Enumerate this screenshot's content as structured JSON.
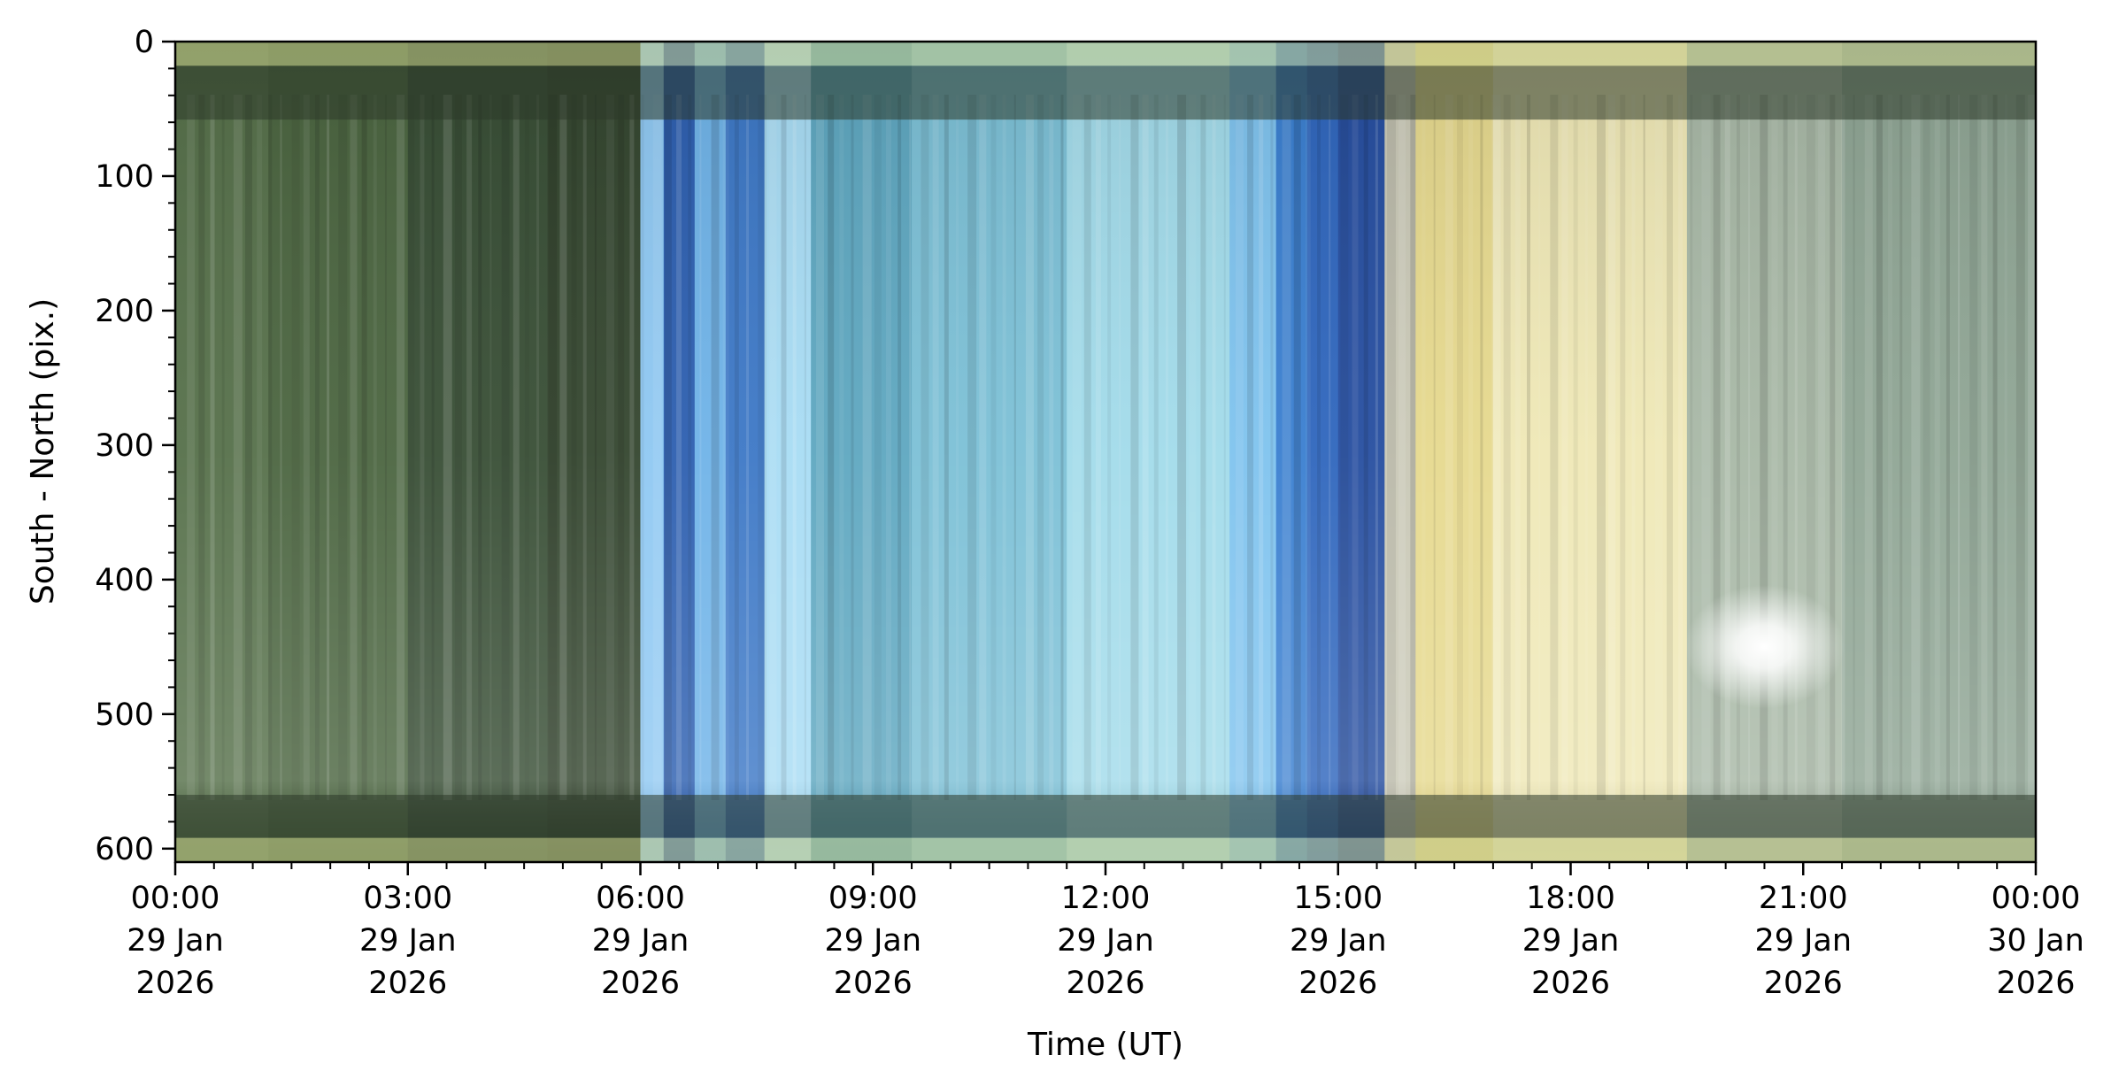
{
  "chart_data": {
    "type": "heatmap",
    "title": "",
    "xlabel": "Time (UT)",
    "ylabel": "South - North (pix.)",
    "x_range_hours": [
      0,
      24
    ],
    "ylim": [
      0,
      610
    ],
    "y_inverted": true,
    "y_ticks": [
      0,
      100,
      200,
      300,
      400,
      500,
      600
    ],
    "x_ticks": [
      {
        "hour": 0,
        "lines": [
          "00:00",
          "29 Jan",
          "2026"
        ]
      },
      {
        "hour": 3,
        "lines": [
          "03:00",
          "29 Jan",
          "2026"
        ]
      },
      {
        "hour": 6,
        "lines": [
          "06:00",
          "29 Jan",
          "2026"
        ]
      },
      {
        "hour": 9,
        "lines": [
          "09:00",
          "29 Jan",
          "2026"
        ]
      },
      {
        "hour": 12,
        "lines": [
          "12:00",
          "29 Jan",
          "2026"
        ]
      },
      {
        "hour": 15,
        "lines": [
          "15:00",
          "29 Jan",
          "2026"
        ]
      },
      {
        "hour": 18,
        "lines": [
          "18:00",
          "29 Jan",
          "2026"
        ]
      },
      {
        "hour": 21,
        "lines": [
          "21:00",
          "29 Jan",
          "2026"
        ]
      },
      {
        "hour": 24,
        "lines": [
          "00:00",
          "30 Jan",
          "2026"
        ]
      }
    ],
    "x_minor_tick_step_hours": 0.5,
    "y_minor_tick_step": 20,
    "grid": false,
    "time_segments": [
      {
        "from": 0.0,
        "to": 1.2,
        "color": "#56704a"
      },
      {
        "from": 1.2,
        "to": 3.0,
        "color": "#4b6540"
      },
      {
        "from": 3.0,
        "to": 4.8,
        "color": "#384e35"
      },
      {
        "from": 4.8,
        "to": 6.0,
        "color": "#34462f"
      },
      {
        "from": 6.0,
        "to": 6.3,
        "color": "#8fc8f2"
      },
      {
        "from": 6.3,
        "to": 6.7,
        "color": "#2d5fb0"
      },
      {
        "from": 6.7,
        "to": 7.1,
        "color": "#6fb3e8"
      },
      {
        "from": 7.1,
        "to": 7.6,
        "color": "#3d78c6"
      },
      {
        "from": 7.6,
        "to": 8.2,
        "color": "#a8dcf4"
      },
      {
        "from": 8.2,
        "to": 9.5,
        "color": "#5ea7c0"
      },
      {
        "from": 9.5,
        "to": 11.5,
        "color": "#7cc0d6"
      },
      {
        "from": 11.5,
        "to": 13.6,
        "color": "#a2dbea"
      },
      {
        "from": 13.6,
        "to": 14.2,
        "color": "#7fc3ee"
      },
      {
        "from": 14.2,
        "to": 14.6,
        "color": "#3a7fd0"
      },
      {
        "from": 14.6,
        "to": 15.0,
        "color": "#2f66bd"
      },
      {
        "from": 15.0,
        "to": 15.6,
        "color": "#264ea0"
      },
      {
        "from": 15.6,
        "to": 16.0,
        "color": "#c9c8b6"
      },
      {
        "from": 16.0,
        "to": 17.0,
        "color": "#e6d98e"
      },
      {
        "from": 17.0,
        "to": 19.5,
        "color": "#efe8b6"
      },
      {
        "from": 19.5,
        "to": 21.5,
        "color": "#a8b8a6"
      },
      {
        "from": 21.5,
        "to": 24.0,
        "color": "#8fa594"
      }
    ],
    "horizontal_bands": [
      {
        "from": 0,
        "to": 18,
        "color": "#c9cf8a"
      },
      {
        "from": 18,
        "to": 58,
        "color": "#2e3a2a"
      },
      {
        "from": 560,
        "to": 592,
        "color": "#2e3a2a"
      },
      {
        "from": 592,
        "to": 610,
        "color": "#c9cf8a"
      }
    ],
    "bright_spot": {
      "hour": 20.5,
      "pix": 450,
      "color": "#ffffff"
    }
  }
}
